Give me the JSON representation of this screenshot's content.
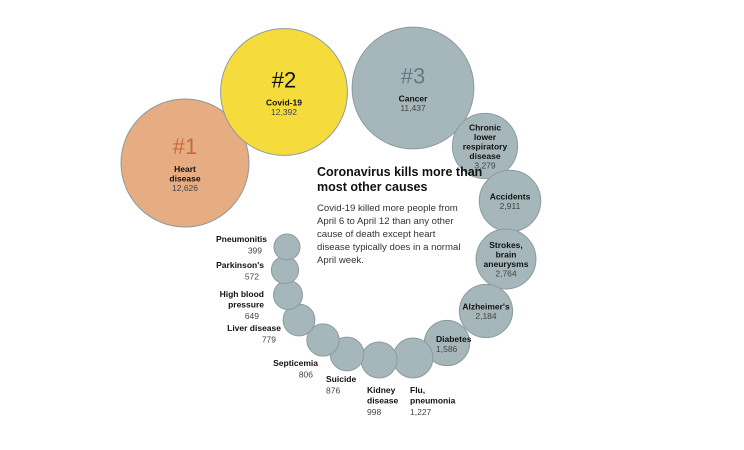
{
  "headline": "Coronavirus kills more than most other causes",
  "description": "Covid-19 killed more people from April 6 to April 12 than any other cause of death except heart disease typically does in a normal April week.",
  "colors": {
    "heart": "#e6ac82",
    "covid": "#f5db3c",
    "other": "#a5b7bb",
    "rank_heart": "#c96a3c",
    "rank_covid": "#111111",
    "rank_other": "#5f7d85"
  },
  "chart_data": {
    "type": "bubble",
    "title": "Coronavirus kills more than most other causes",
    "series": [
      {
        "name": "Heart disease",
        "label_lines": [
          "Heart",
          "disease"
        ],
        "value": 12626,
        "value_label": "12,626",
        "rank": "#1"
      },
      {
        "name": "Covid-19",
        "label_lines": [
          "Covid-19"
        ],
        "value": 12392,
        "value_label": "12,392",
        "rank": "#2"
      },
      {
        "name": "Cancer",
        "label_lines": [
          "Cancer"
        ],
        "value": 11437,
        "value_label": "11,437",
        "rank": "#3"
      },
      {
        "name": "Chronic lower respiratory disease",
        "label_lines": [
          "Chronic",
          "lower",
          "respiratory",
          "disease"
        ],
        "value": 3279,
        "value_label": "3,279"
      },
      {
        "name": "Accidents",
        "label_lines": [
          "Accidents"
        ],
        "value": 2911,
        "value_label": "2,911"
      },
      {
        "name": "Strokes, brain aneurysms",
        "label_lines": [
          "Strokes,",
          "brain",
          "aneurysms"
        ],
        "value": 2764,
        "value_label": "2,764"
      },
      {
        "name": "Alzheimer's",
        "label_lines": [
          "Alzheimer's"
        ],
        "value": 2184,
        "value_label": "2,184"
      },
      {
        "name": "Diabetes",
        "label_lines": [
          "Diabetes"
        ],
        "value": 1586,
        "value_label": "1,586"
      },
      {
        "name": "Flu, pneumonia",
        "label_lines": [
          "Flu,",
          "pneumonia"
        ],
        "value": 1227,
        "value_label": "1,227"
      },
      {
        "name": "Kidney disease",
        "label_lines": [
          "Kidney",
          "disease"
        ],
        "value": 998,
        "value_label": "998"
      },
      {
        "name": "Suicide",
        "label_lines": [
          "Suicide"
        ],
        "value": 876,
        "value_label": "876"
      },
      {
        "name": "Septicemia",
        "label_lines": [
          "Septicemia"
        ],
        "value": 806,
        "value_label": "806"
      },
      {
        "name": "Liver disease",
        "label_lines": [
          "Liver disease"
        ],
        "value": 779,
        "value_label": "779"
      },
      {
        "name": "High blood pressure",
        "label_lines": [
          "High blood",
          "pressure"
        ],
        "value": 649,
        "value_label": "649"
      },
      {
        "name": "Parkinson's",
        "label_lines": [
          "Parkinson's"
        ],
        "value": 572,
        "value_label": "572"
      },
      {
        "name": "Pneumonitis",
        "label_lines": [
          "Pneumonitis"
        ],
        "value": 399,
        "value_label": "399"
      }
    ]
  }
}
